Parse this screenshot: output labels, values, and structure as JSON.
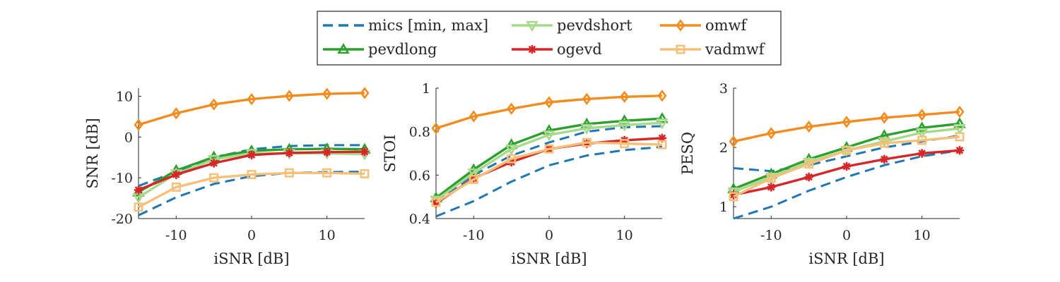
{
  "legend": {
    "entries": [
      {
        "key": "mics",
        "label": "mics [min, max]"
      },
      {
        "key": "pevdshort",
        "label": "pevdshort"
      },
      {
        "key": "omwf",
        "label": "omwf"
      },
      {
        "key": "pevdlong",
        "label": "pevdlong"
      },
      {
        "key": "ogevd",
        "label": "ogevd"
      },
      {
        "key": "vadmwf",
        "label": "vadmwf"
      }
    ]
  },
  "styles": {
    "mics": {
      "color": "#1f77b4",
      "dash": true,
      "marker": "none"
    },
    "pevdshort": {
      "color": "#a6d98a",
      "dash": false,
      "marker": "triangle-down"
    },
    "omwf": {
      "color": "#f28c1e",
      "dash": false,
      "marker": "diamond"
    },
    "pevdlong": {
      "color": "#2ca02c",
      "dash": false,
      "marker": "triangle-up"
    },
    "ogevd": {
      "color": "#d62728",
      "dash": false,
      "marker": "star"
    },
    "vadmwf": {
      "color": "#f7c07a",
      "dash": false,
      "marker": "square"
    }
  },
  "chart_data": [
    {
      "type": "line",
      "xlabel": "iSNR [dB]",
      "ylabel": "SNR [dB]",
      "xlim": [
        -15,
        15
      ],
      "ylim": [
        -20,
        12
      ],
      "xticks": [
        -10,
        0,
        10
      ],
      "xtick_labels": [
        "-10",
        "0",
        "10"
      ],
      "yticks": [
        -20,
        -10,
        0,
        10
      ],
      "ytick_labels": [
        "-20",
        "-10",
        "0",
        "10"
      ],
      "x": [
        -15,
        -10,
        -5,
        0,
        5,
        10,
        15
      ],
      "series": [
        {
          "name": "mics [min, max]",
          "key": "mics",
          "values": [
            -19.2,
            -14.8,
            -11.5,
            -9.6,
            -8.8,
            -8.6,
            -8.5
          ]
        },
        {
          "name": "mics [min, max]",
          "key": "mics",
          "values": [
            -12.0,
            -8.5,
            -5.0,
            -3.0,
            -2.2,
            -2.0,
            -2.0
          ]
        },
        {
          "name": "omwf",
          "key": "omwf",
          "values": [
            3.0,
            5.8,
            8.0,
            9.3,
            10.1,
            10.6,
            10.8
          ]
        },
        {
          "name": "pevdlong",
          "key": "pevdlong",
          "values": [
            -13.5,
            -8.2,
            -4.9,
            -3.4,
            -3.0,
            -2.9,
            -3.0
          ]
        },
        {
          "name": "pevdshort",
          "key": "pevdshort",
          "values": [
            -14.8,
            -9.0,
            -5.5,
            -4.0,
            -4.0,
            -4.0,
            -4.2
          ]
        },
        {
          "name": "ogevd",
          "key": "ogevd",
          "values": [
            -13.0,
            -9.2,
            -6.4,
            -4.4,
            -3.9,
            -3.7,
            -3.6
          ]
        },
        {
          "name": "vadmwf",
          "key": "vadmwf",
          "values": [
            -17.2,
            -12.3,
            -10.0,
            -9.2,
            -8.8,
            -8.8,
            -9.0
          ]
        }
      ]
    },
    {
      "type": "line",
      "xlabel": "iSNR [dB]",
      "ylabel": "STOI",
      "xlim": [
        -15,
        15
      ],
      "ylim": [
        0.4,
        1.0
      ],
      "xticks": [
        -10,
        0,
        10
      ],
      "xtick_labels": [
        "-10",
        "0",
        "10"
      ],
      "yticks": [
        0.4,
        0.6,
        0.8,
        1.0
      ],
      "ytick_labels": [
        "0.4",
        "0.6",
        "0.8",
        "1"
      ],
      "x": [
        -15,
        -10,
        -5,
        0,
        5,
        10,
        15
      ],
      "series": [
        {
          "name": "mics [min, max]",
          "key": "mics",
          "values": [
            0.41,
            0.48,
            0.57,
            0.645,
            0.69,
            0.715,
            0.73
          ]
        },
        {
          "name": "mics [min, max]",
          "key": "mics",
          "values": [
            0.475,
            0.6,
            0.69,
            0.75,
            0.8,
            0.82,
            0.825
          ]
        },
        {
          "name": "omwf",
          "key": "omwf",
          "values": [
            0.815,
            0.87,
            0.905,
            0.935,
            0.95,
            0.96,
            0.965
          ]
        },
        {
          "name": "pevdlong",
          "key": "pevdlong",
          "values": [
            0.495,
            0.625,
            0.74,
            0.805,
            0.835,
            0.85,
            0.86
          ]
        },
        {
          "name": "pevdshort",
          "key": "pevdshort",
          "values": [
            0.485,
            0.61,
            0.72,
            0.785,
            0.815,
            0.83,
            0.84
          ]
        },
        {
          "name": "ogevd",
          "key": "ogevd",
          "values": [
            0.47,
            0.585,
            0.66,
            0.72,
            0.745,
            0.76,
            0.77
          ]
        },
        {
          "name": "vadmwf",
          "key": "vadmwf",
          "values": [
            0.475,
            0.58,
            0.675,
            0.72,
            0.75,
            0.745,
            0.74
          ]
        }
      ]
    },
    {
      "type": "line",
      "xlabel": "iSNR [dB]",
      "ylabel": "PESQ",
      "xlim": [
        -15,
        15
      ],
      "ylim": [
        0.8,
        3.0
      ],
      "xticks": [
        -10,
        0,
        10
      ],
      "xtick_labels": [
        "-10",
        "0",
        "10"
      ],
      "yticks": [
        1,
        2,
        3
      ],
      "ytick_labels": [
        "1",
        "2",
        "3"
      ],
      "x": [
        -15,
        -10,
        -5,
        0,
        5,
        10,
        15
      ],
      "series": [
        {
          "name": "mics [min, max]",
          "key": "mics",
          "values": [
            0.8,
            1.0,
            1.27,
            1.5,
            1.7,
            1.85,
            1.95
          ]
        },
        {
          "name": "mics [min, max]",
          "key": "mics",
          "values": [
            1.65,
            1.6,
            1.7,
            1.85,
            2.0,
            2.1,
            2.2
          ]
        },
        {
          "name": "omwf",
          "key": "omwf",
          "values": [
            2.1,
            2.24,
            2.35,
            2.43,
            2.5,
            2.55,
            2.6
          ]
        },
        {
          "name": "pevdlong",
          "key": "pevdlong",
          "values": [
            1.3,
            1.55,
            1.8,
            2.0,
            2.2,
            2.33,
            2.4
          ]
        },
        {
          "name": "pevdshort",
          "key": "pevdshort",
          "values": [
            1.25,
            1.5,
            1.75,
            1.95,
            2.1,
            2.25,
            2.32
          ]
        },
        {
          "name": "ogevd",
          "key": "ogevd",
          "values": [
            1.2,
            1.33,
            1.5,
            1.68,
            1.8,
            1.9,
            1.95
          ]
        },
        {
          "name": "vadmwf",
          "key": "vadmwf",
          "values": [
            1.17,
            1.48,
            1.72,
            1.95,
            2.07,
            2.12,
            2.18
          ]
        }
      ]
    }
  ]
}
